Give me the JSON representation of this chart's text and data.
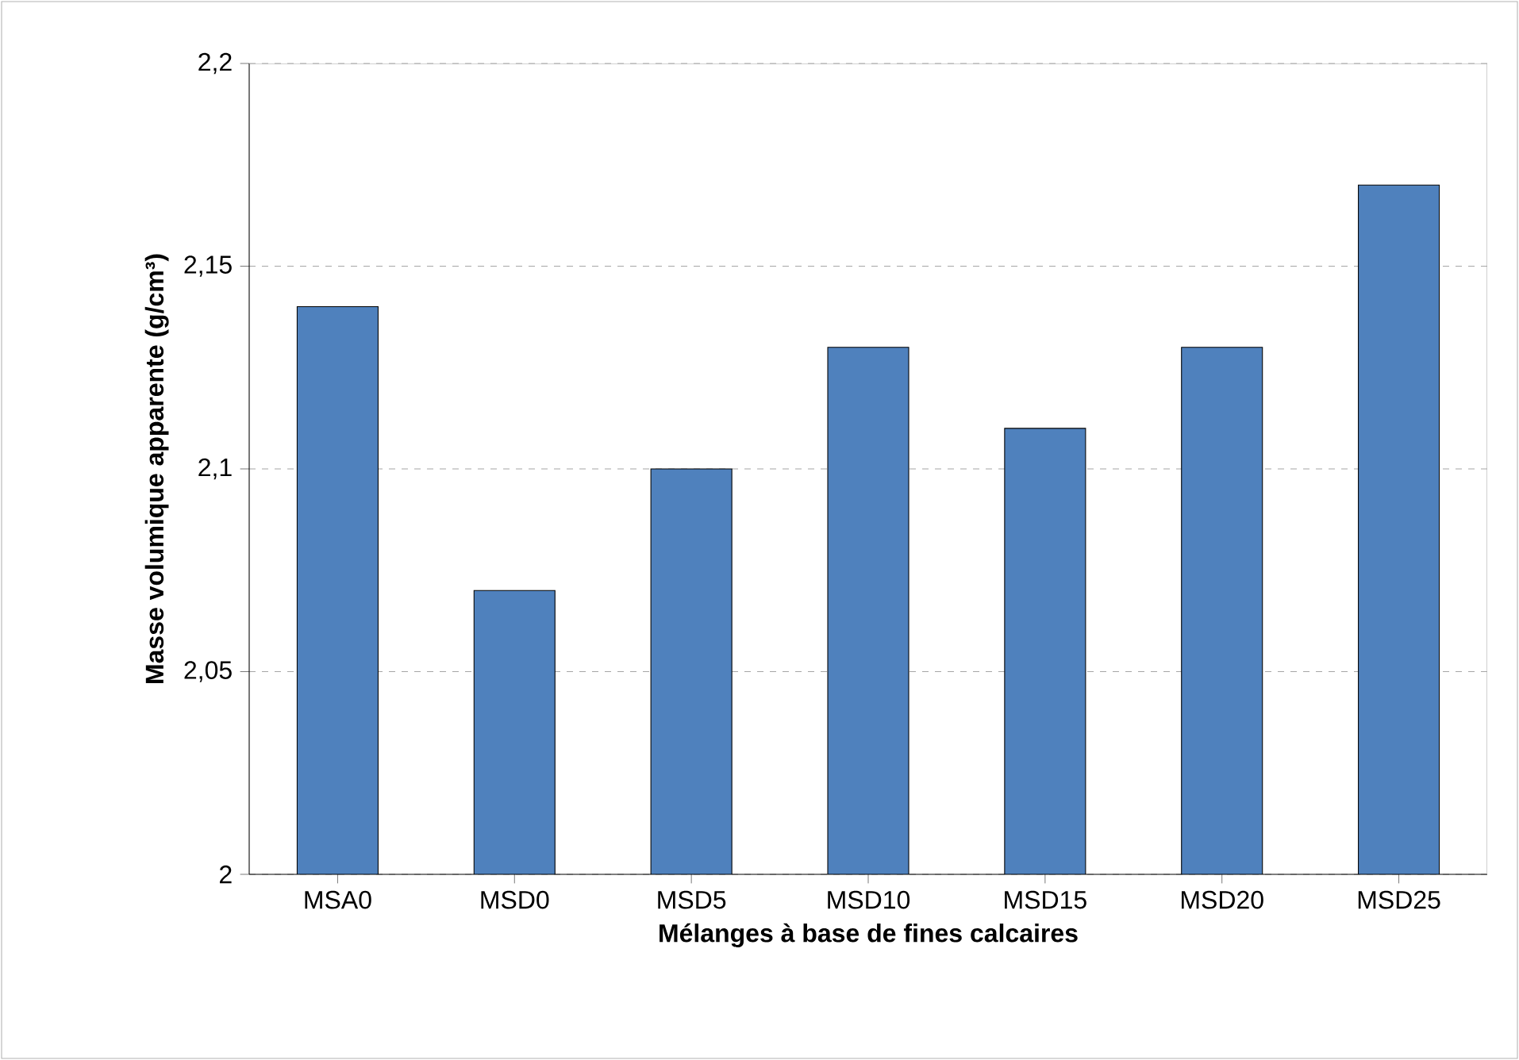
{
  "chart_data": {
    "type": "bar",
    "xlabel": "Mélanges à base de fines calcaires",
    "ylabel": "Masse volumique apparente (g/cm³)",
    "categories": [
      "MSA0",
      "MSD0",
      "MSD5",
      "MSD10",
      "MSD15",
      "MSD20",
      "MSD25"
    ],
    "values": [
      2.14,
      2.07,
      2.1,
      2.13,
      2.11,
      2.13,
      2.17
    ],
    "color": "#4f81bd",
    "ylim": [
      2,
      2.2
    ],
    "yticks": [
      2,
      {
        "value": 2.05,
        "label": "2,05"
      },
      {
        "value": 2.1,
        "label": "2,1"
      },
      {
        "value": 2.15,
        "label": "2,15"
      },
      {
        "value": 2.2,
        "label": "2,2"
      }
    ],
    "grid": "y"
  }
}
